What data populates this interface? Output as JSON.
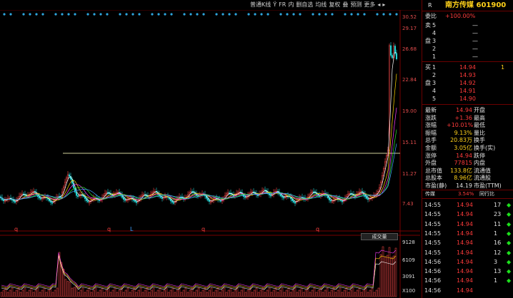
{
  "toolbar": {
    "items": [
      "普通K线",
      "Ÿ",
      "FR",
      "内",
      "删自选",
      "均线",
      "复权",
      "叠",
      "预测",
      "更多",
      "◂",
      "▸"
    ]
  },
  "axis": {
    "price_ticks": [
      "30.52",
      "29.17",
      "26.68",
      "22.84",
      "19.00",
      "15.11",
      "11.27",
      "7.43"
    ],
    "vol_ticks": [
      "9128",
      "6109",
      "3091",
      "X100"
    ]
  },
  "markers": {
    "q1": "q",
    "q2": "q",
    "l": "L",
    "q3": "q",
    "q4": "q"
  },
  "volume_label": "成交量",
  "stock": {
    "name": "南方传媒 601900",
    "r_badge": "R"
  },
  "committee": {
    "label": "委比",
    "value": "+100.00%",
    "value2": ""
  },
  "asks": [
    {
      "label": "卖",
      "level": "5",
      "price": "",
      "vol": "—"
    },
    {
      "label": "",
      "level": "4",
      "price": "",
      "vol": "—"
    },
    {
      "label": "盘",
      "level": "3",
      "price": "",
      "vol": "—"
    },
    {
      "label": "",
      "level": "2",
      "price": "",
      "vol": "—"
    },
    {
      "label": "",
      "level": "1",
      "price": "",
      "vol": "—"
    }
  ],
  "bids": [
    {
      "label": "买",
      "level": "1",
      "price": "14.94",
      "vol": "1"
    },
    {
      "label": "",
      "level": "2",
      "price": "14.93",
      "vol": ""
    },
    {
      "label": "盘",
      "level": "3",
      "price": "14.92",
      "vol": ""
    },
    {
      "label": "",
      "level": "4",
      "price": "14.91",
      "vol": ""
    },
    {
      "label": "",
      "level": "5",
      "price": "14.90",
      "vol": ""
    }
  ],
  "stats": [
    {
      "k1": "最新",
      "v1": "14.94",
      "k2": "开盘",
      "c1": "red"
    },
    {
      "k1": "涨跌",
      "v1": "+1.36",
      "k2": "最高",
      "c1": "red"
    },
    {
      "k1": "涨幅",
      "v1": "+10.01%",
      "k2": "最低",
      "c1": "red"
    },
    {
      "k1": "振幅",
      "v1": "9.13%",
      "k2": "量比",
      "c1": "yellow"
    },
    {
      "k1": "总手",
      "v1": "20.83万",
      "k2": "换手",
      "c1": "yellow"
    },
    {
      "k1": "金额",
      "v1": "3.05亿",
      "k2": "换手(实)",
      "c1": "yellow"
    },
    {
      "k1": "涨停",
      "v1": "14.94",
      "k2": "跌停",
      "c1": "red"
    },
    {
      "k1": "外盘",
      "v1": "77815",
      "k2": "内盘",
      "c1": "red"
    },
    {
      "k1": "总市值",
      "v1": "133.8亿",
      "k2": "流通值",
      "c1": "yellow"
    },
    {
      "k1": "总股本",
      "v1": "8.96亿",
      "k2": "流通股",
      "c1": "yellow"
    },
    {
      "k1": "市盈(静)",
      "v1": "14.19",
      "k2": "市盈(TTM)",
      "c1": "white"
    }
  ],
  "industry": {
    "label": "传媒",
    "value": "3.54%",
    "tail": "同行比"
  },
  "ticks": [
    {
      "time": "14:55",
      "price": "14.94",
      "vol": "17",
      "dir": "◆"
    },
    {
      "time": "14:55",
      "price": "14.94",
      "vol": "23",
      "dir": "◆"
    },
    {
      "time": "14:55",
      "price": "14.94",
      "vol": "11",
      "dir": "◆"
    },
    {
      "time": "14:55",
      "price": "14.94",
      "vol": "1",
      "dir": "◆"
    },
    {
      "time": "14:55",
      "price": "14.94",
      "vol": "16",
      "dir": "◆"
    },
    {
      "time": "14:55",
      "price": "14.94",
      "vol": "12",
      "dir": "◆"
    },
    {
      "time": "14:56",
      "price": "14.94",
      "vol": "3",
      "dir": "◆"
    },
    {
      "time": "14:56",
      "price": "14.94",
      "vol": "13",
      "dir": "◆"
    },
    {
      "time": "14:56",
      "price": "14.94",
      "vol": "1",
      "dir": "◆"
    },
    {
      "time": "14:56",
      "price": "14.94",
      "vol": "",
      "dir": ""
    }
  ]
}
